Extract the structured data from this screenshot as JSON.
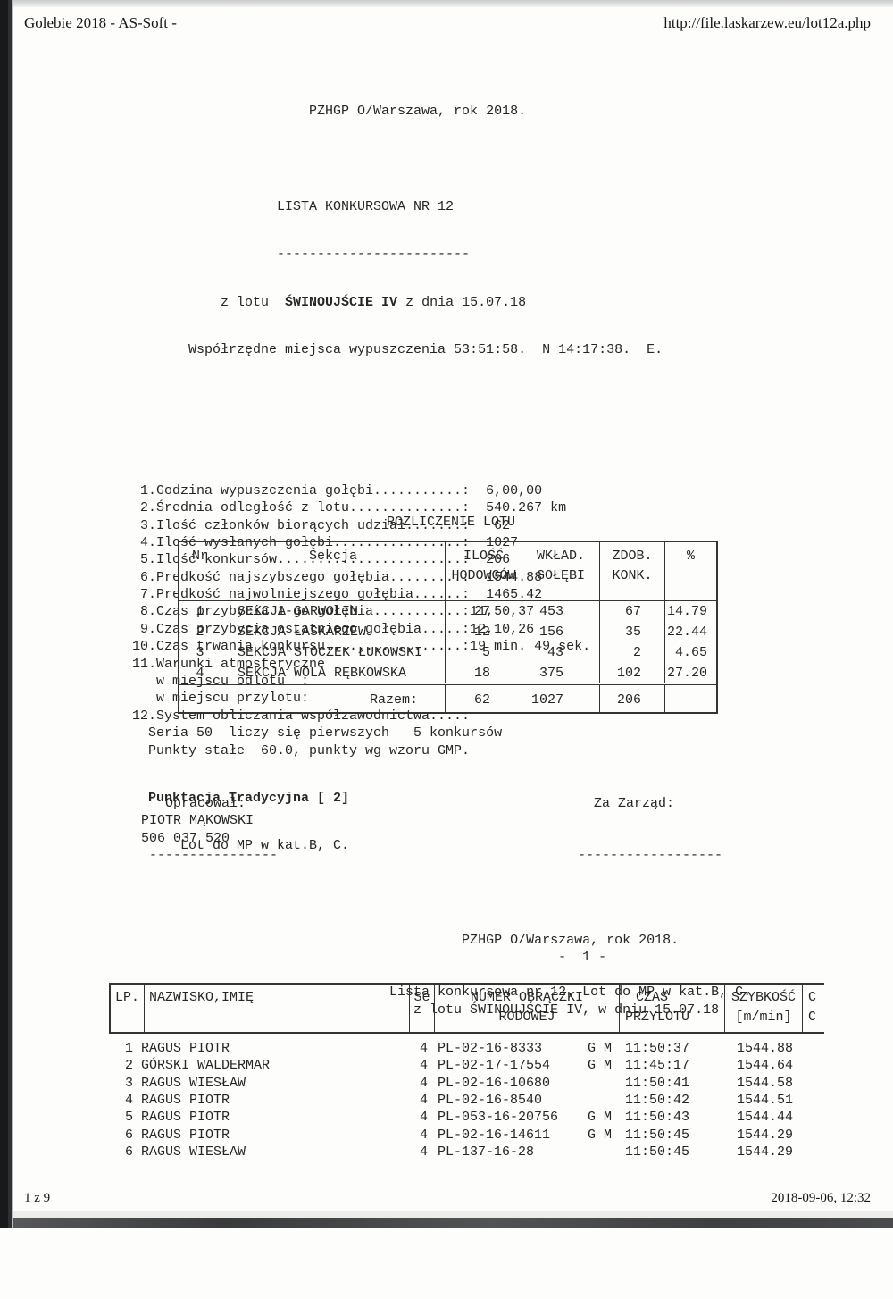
{
  "print_header": {
    "app_title": "Golebie 2018 - AS-Soft -",
    "url": "http://file.laskarzew.eu/lot12a.php"
  },
  "print_footer": {
    "page_info": "1 z 9",
    "datetime": "2018-09-06, 12:32"
  },
  "report": {
    "org_line": "                      PZHGP O/Warszawa, rok 2018.",
    "list_title": "                  LISTA KONKURSOWA NR 12",
    "title_underline": "                  ------------------------",
    "flight_line_prefix": "           z lotu  ",
    "flight_name": "ŚWINOUJŚCIE IV",
    "flight_line_suffix": " z dnia 15.07.18",
    "coords_line": "       Współrzędne miejsca wypuszczenia 53:51:58.  N 14:17:38.  E.",
    "stat_lines": [
      " 1.Godzina wypuszczenia gołębi...........:  6,00,00",
      " 2.Średnia odległość z lotu..............:  540.267 km",
      " 3.Ilość członków biorących udział.......:   62",
      " 4.Ilość wysłanych gołębi................:  1027",
      " 5.Ilość konkursów.......................:  206",
      " 6.Predkość najszybszego gołębia.........:  1544.88",
      " 7.Predkość najwolniejszego gołębia......:  1465.42",
      " 8.Czas przybycia 1-go gołębia...........:11,50,37",
      " 9.Czas przybycia ostatniego gołębia.....:12,10,26",
      "10.Czas trwania konkursu.................:19 min. 49 sek.",
      "11.Warunki atmosferyczne",
      "   w miejscu odlotu  :",
      "   w miejscu przylotu:",
      "12.System obliczania współzawodnictwa....:",
      "  Seria 50  liczy się pierwszych   5 konkursów",
      "  Punkty stałe  60.0, punkty wg wzoru GMP."
    ],
    "punktacja_bold": "  Punktacja Tradycyjna [ 2]",
    "lot_mp_line": "      Lot do MP w kat.B, C."
  },
  "settlement": {
    "title": "ROZLICZENIE LOTU",
    "headers": {
      "nr": "Nr",
      "sekcja": "Sekcja",
      "ilosc1": "ILOŚĆ",
      "ilosc2": "HODOWCÓW",
      "wklad1": "WKŁAD.",
      "wklad2": "GOŁĘBI",
      "zdob1": "ZDOB.",
      "zdob2": "KONK.",
      "pct": "%"
    },
    "rows": [
      {
        "nr": "1",
        "sekcja": "SEKCJA GARWOLIN",
        "hodowcy": "27",
        "golebie": "453",
        "konkursy": "67",
        "pct": "14.79"
      },
      {
        "nr": "2",
        "sekcja": "SEKCJA ŁASKARZEW",
        "hodowcy": "12",
        "golebie": "156",
        "konkursy": "35",
        "pct": "22.44"
      },
      {
        "nr": "3",
        "sekcja": "SEKCJA STOCZEK ŁUKOWSKI",
        "hodowcy": "5",
        "golebie": "43",
        "konkursy": "2",
        "pct": "4.65"
      },
      {
        "nr": "4",
        "sekcja": "SEKCJA WOLA RĘBKOWSKA",
        "hodowcy": "18",
        "golebie": "375",
        "konkursy": "102",
        "pct": "27.20"
      }
    ],
    "total": {
      "label": "Razem:",
      "hodowcy": "62",
      "golebie": "1027",
      "konkursy": "206",
      "pct": ""
    }
  },
  "signatures": {
    "left_lines": [
      "   Opracował:",
      "PIOTR MĄKOWSKI",
      "506 037 520",
      " ----------------"
    ],
    "right_lines": [
      "  Za Zarząd:",
      " ",
      " ",
      "------------------"
    ]
  },
  "results": {
    "title_lines": [
      "                                         PZHGP O/Warszawa, rok 2018.",
      "                                                     -  1 -",
      " ",
      "                                Lista konkursowa nr 12. Lot do MP w kat.B, C.",
      "                                   z lotu ŚWINOUJŚCIE IV, w dniu 15.07.18"
    ],
    "headers": {
      "lp": "LP.",
      "name": "NAZWISKO,IMIĘ",
      "se": "Se",
      "ring1": "NUMER OBRĄCZKI",
      "ring2": "RODOWEJ",
      "czas1": "CZAS",
      "czas2": "PRZYLOTU",
      "szybkosc1": "SZYBKOŚĆ",
      "szybkosc2": "[m/min]",
      "c1": "C",
      "c2": "C"
    },
    "rows": [
      {
        "lp": "1",
        "name": "RAGUS PIOTR",
        "se": "4",
        "ring": "PL-02-16-8333",
        "gm": "G M",
        "time": "11:50:37",
        "speed": "1544.88"
      },
      {
        "lp": "2",
        "name": "GÓRSKI WALDERMAR",
        "se": "4",
        "ring": "PL-02-17-17554",
        "gm": "G M",
        "time": "11:45:17",
        "speed": "1544.64"
      },
      {
        "lp": "3",
        "name": "RAGUS WIESŁAW",
        "se": "4",
        "ring": "PL-02-16-10680",
        "gm": "",
        "time": "11:50:41",
        "speed": "1544.58"
      },
      {
        "lp": "4",
        "name": "RAGUS PIOTR",
        "se": "4",
        "ring": "PL-02-16-8540",
        "gm": "",
        "time": "11:50:42",
        "speed": "1544.51"
      },
      {
        "lp": "5",
        "name": "RAGUS PIOTR",
        "se": "4",
        "ring": "PL-053-16-20756",
        "gm": "G M",
        "time": "11:50:43",
        "speed": "1544.44"
      },
      {
        "lp": "6",
        "name": "RAGUS PIOTR",
        "se": "4",
        "ring": "PL-02-16-14611",
        "gm": "G M",
        "time": "11:50:45",
        "speed": "1544.29"
      },
      {
        "lp": "6",
        "name": "RAGUS WIESŁAW",
        "se": "4",
        "ring": "PL-137-16-28",
        "gm": "",
        "time": "11:50:45",
        "speed": "1544.29"
      }
    ]
  }
}
